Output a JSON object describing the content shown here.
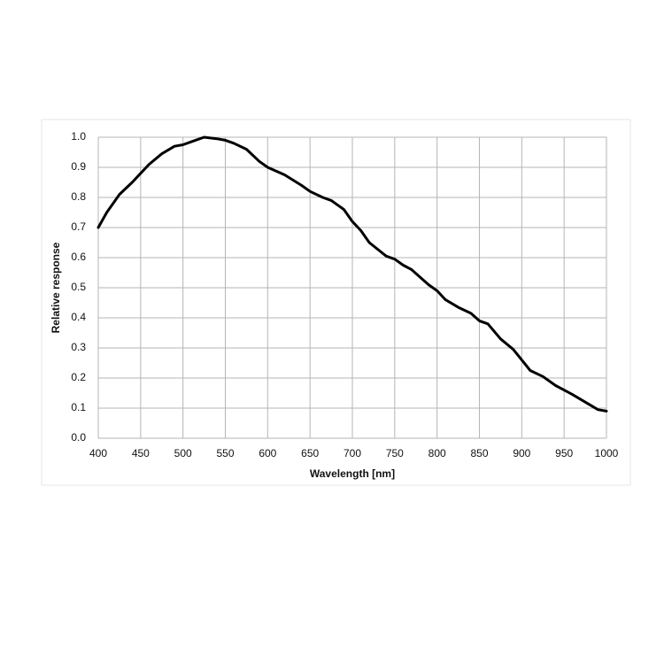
{
  "chart_data": {
    "type": "line",
    "x_label": "Wavelength [nm]",
    "y_label": "Relative response",
    "x": [
      400,
      410,
      425,
      440,
      450,
      460,
      475,
      490,
      500,
      510,
      525,
      540,
      550,
      560,
      575,
      590,
      600,
      620,
      640,
      650,
      665,
      675,
      690,
      700,
      710,
      720,
      740,
      750,
      760,
      770,
      790,
      800,
      810,
      825,
      840,
      850,
      860,
      875,
      890,
      900,
      910,
      925,
      940,
      950,
      960,
      975,
      990,
      1000
    ],
    "values": [
      0.7,
      0.75,
      0.81,
      0.85,
      0.88,
      0.91,
      0.945,
      0.97,
      0.975,
      0.985,
      1.0,
      0.995,
      0.99,
      0.98,
      0.96,
      0.92,
      0.9,
      0.875,
      0.84,
      0.82,
      0.8,
      0.79,
      0.76,
      0.72,
      0.69,
      0.65,
      0.605,
      0.595,
      0.575,
      0.56,
      0.51,
      0.49,
      0.46,
      0.435,
      0.415,
      0.39,
      0.38,
      0.33,
      0.295,
      0.26,
      0.225,
      0.205,
      0.175,
      0.16,
      0.145,
      0.12,
      0.095,
      0.09
    ],
    "color": "#000000",
    "xlim": [
      400,
      1000
    ],
    "xticks": [
      400,
      450,
      500,
      550,
      600,
      650,
      700,
      750,
      800,
      850,
      900,
      950,
      1000
    ],
    "ylim": [
      0,
      1
    ],
    "yticks": [
      {
        "value": 0,
        "label": "0.0"
      },
      0.1,
      0.2,
      0.3,
      0.4,
      0.5,
      0.6,
      0.7,
      0.8,
      0.9,
      {
        "value": 1,
        "label": "1.0"
      }
    ],
    "grid": true
  }
}
